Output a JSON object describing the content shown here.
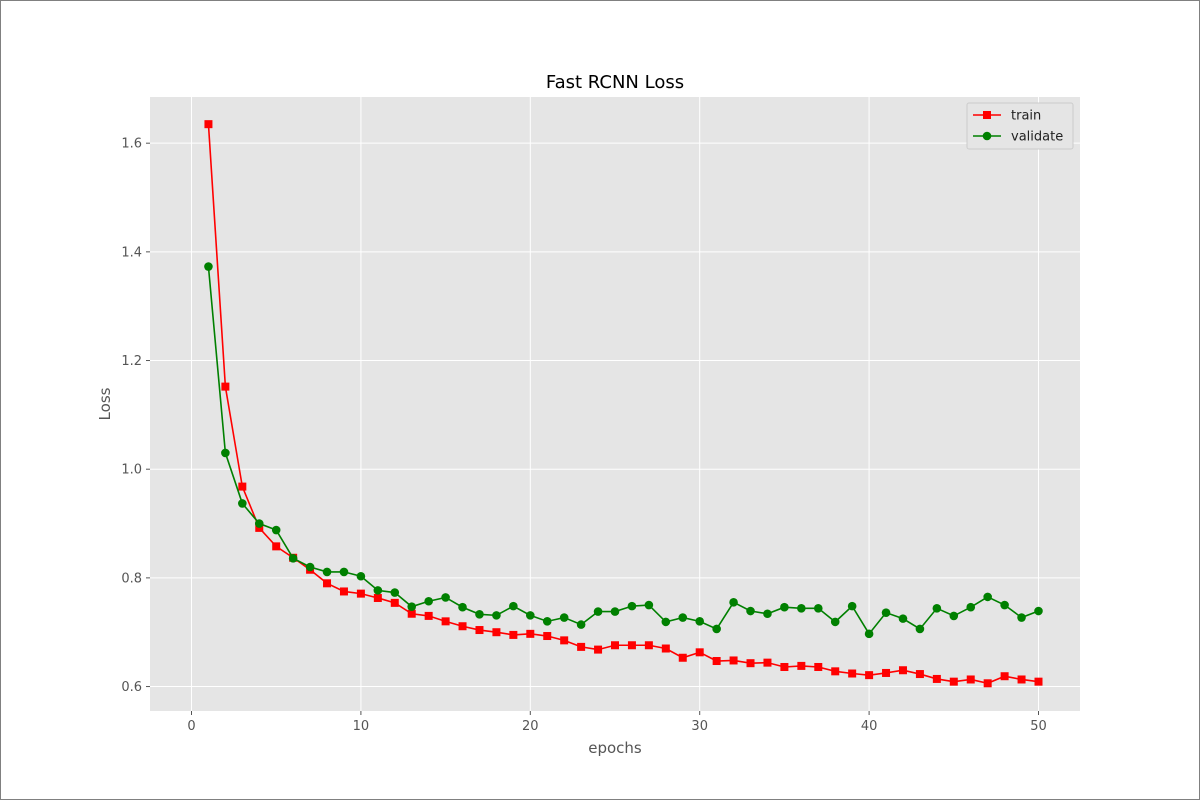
{
  "chart_data": {
    "type": "line",
    "title": "Fast RCNN Loss",
    "xlabel": "epochs",
    "ylabel": "Loss",
    "xlim": [
      -2.45,
      52.45
    ],
    "ylim": [
      0.555,
      1.685
    ],
    "xticks": [
      0,
      10,
      20,
      30,
      40,
      50
    ],
    "yticks": [
      0.6,
      0.8,
      1.0,
      1.2,
      1.4,
      1.6
    ],
    "xtick_labels": [
      "0",
      "10",
      "20",
      "30",
      "40",
      "50"
    ],
    "ytick_labels": [
      "0.6",
      "0.8",
      "1.0",
      "1.2",
      "1.4",
      "1.6"
    ],
    "grid": true,
    "legend_position": "top-right",
    "background": "#e5e5e5",
    "x": [
      1,
      2,
      3,
      4,
      5,
      6,
      7,
      8,
      9,
      10,
      11,
      12,
      13,
      14,
      15,
      16,
      17,
      18,
      19,
      20,
      21,
      22,
      23,
      24,
      25,
      26,
      27,
      28,
      29,
      30,
      31,
      32,
      33,
      34,
      35,
      36,
      37,
      38,
      39,
      40,
      41,
      42,
      43,
      44,
      45,
      46,
      47,
      48,
      49,
      50
    ],
    "series": [
      {
        "name": "train",
        "color": "#ff0000",
        "marker": "square",
        "values": [
          1.635,
          1.152,
          0.968,
          0.892,
          0.858,
          0.837,
          0.815,
          0.79,
          0.775,
          0.771,
          0.763,
          0.754,
          0.734,
          0.73,
          0.72,
          0.711,
          0.704,
          0.7,
          0.695,
          0.697,
          0.693,
          0.685,
          0.673,
          0.668,
          0.676,
          0.676,
          0.676,
          0.67,
          0.653,
          0.663,
          0.647,
          0.648,
          0.643,
          0.644,
          0.636,
          0.638,
          0.636,
          0.628,
          0.624,
          0.621,
          0.625,
          0.63,
          0.623,
          0.614,
          0.609,
          0.613,
          0.606,
          0.619,
          0.613,
          0.609
        ]
      },
      {
        "name": "validate",
        "color": "#008000",
        "marker": "circle",
        "values": [
          1.373,
          1.03,
          0.937,
          0.9,
          0.888,
          0.836,
          0.82,
          0.811,
          0.811,
          0.803,
          0.777,
          0.773,
          0.747,
          0.757,
          0.764,
          0.746,
          0.733,
          0.731,
          0.748,
          0.731,
          0.72,
          0.727,
          0.714,
          0.738,
          0.738,
          0.748,
          0.75,
          0.719,
          0.727,
          0.72,
          0.706,
          0.755,
          0.739,
          0.734,
          0.746,
          0.744,
          0.744,
          0.719,
          0.748,
          0.697,
          0.736,
          0.725,
          0.706,
          0.744,
          0.73,
          0.746,
          0.765,
          0.75,
          0.727,
          0.739
        ]
      }
    ]
  }
}
